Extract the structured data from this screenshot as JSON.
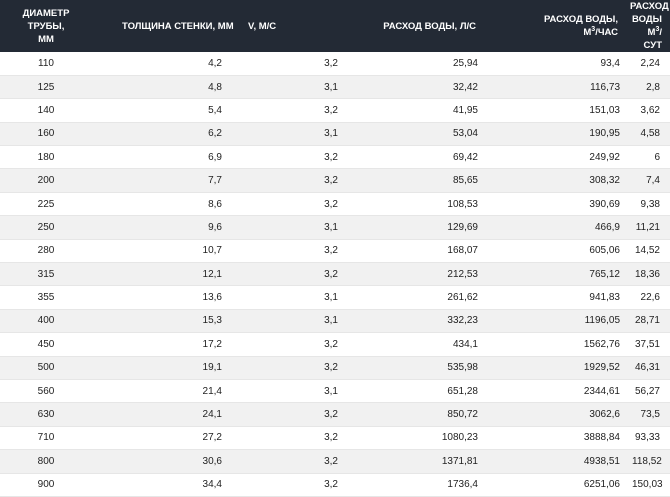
{
  "table": {
    "headers": [
      {
        "line1": "Диаметр трубы,",
        "line2": "мм"
      },
      {
        "line1": "Толщина стенки, мм",
        "line2": ""
      },
      {
        "line1": "V, м/с",
        "line2": ""
      },
      {
        "line1": "Расход воды, л/с",
        "line2": ""
      },
      {
        "line1": "Расход воды,",
        "pre": "м",
        "sup": "3",
        "post": "/час"
      },
      {
        "line1": "Расход воды",
        "pre": "м",
        "sup": "3",
        "post": "/сут"
      }
    ],
    "rows": [
      [
        "110",
        "4,2",
        "3,2",
        "25,94",
        "93,4",
        "2,24"
      ],
      [
        "125",
        "4,8",
        "3,1",
        "32,42",
        "116,73",
        "2,8"
      ],
      [
        "140",
        "5,4",
        "3,2",
        "41,95",
        "151,03",
        "3,62"
      ],
      [
        "160",
        "6,2",
        "3,1",
        "53,04",
        "190,95",
        "4,58"
      ],
      [
        "180",
        "6,9",
        "3,2",
        "69,42",
        "249,92",
        "6"
      ],
      [
        "200",
        "7,7",
        "3,2",
        "85,65",
        "308,32",
        "7,4"
      ],
      [
        "225",
        "8,6",
        "3,2",
        "108,53",
        "390,69",
        "9,38"
      ],
      [
        "250",
        "9,6",
        "3,1",
        "129,69",
        "466,9",
        "11,21"
      ],
      [
        "280",
        "10,7",
        "3,2",
        "168,07",
        "605,06",
        "14,52"
      ],
      [
        "315",
        "12,1",
        "3,2",
        "212,53",
        "765,12",
        "18,36"
      ],
      [
        "355",
        "13,6",
        "3,1",
        "261,62",
        "941,83",
        "22,6"
      ],
      [
        "400",
        "15,3",
        "3,1",
        "332,23",
        "1196,05",
        "28,71"
      ],
      [
        "450",
        "17,2",
        "3,2",
        "434,1",
        "1562,76",
        "37,51"
      ],
      [
        "500",
        "19,1",
        "3,2",
        "535,98",
        "1929,52",
        "46,31"
      ],
      [
        "560",
        "21,4",
        "3,1",
        "651,28",
        "2344,61",
        "56,27"
      ],
      [
        "630",
        "24,1",
        "3,2",
        "850,72",
        "3062,6",
        "73,5"
      ],
      [
        "710",
        "27,2",
        "3,2",
        "1080,23",
        "3888,84",
        "93,33"
      ],
      [
        "800",
        "30,6",
        "3,2",
        "1371,81",
        "4938,51",
        "118,52"
      ],
      [
        "900",
        "34,4",
        "3,2",
        "1736,4",
        "6251,06",
        "150,03"
      ]
    ]
  },
  "colors": {
    "header_bg": "#232a35",
    "header_text": "#ffffff",
    "row_alt": "#f1f1f1"
  }
}
